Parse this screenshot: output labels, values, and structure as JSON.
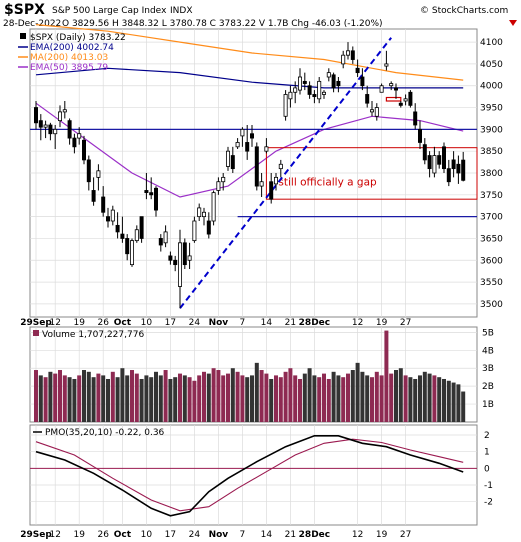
{
  "header": {
    "symbol": "$SPX",
    "name": "S&P 500 Large Cap Index",
    "exchange": "INDX",
    "date": "28-Dec-2022",
    "quote": "O 3829.56  H 3848.32  L 3780.78  C 3783.22  V 1.7B  Chg -46.03 (-1.20%)",
    "arrow": "down-triangle-icon",
    "source": "© StockCharts.com"
  },
  "colors": {
    "up_fill": "#ffffff",
    "down_fill": "#000000",
    "ema200": "#00008b",
    "ma200": "#ff8c1a",
    "ema50": "#9b30c8",
    "trendline": "#0000cc",
    "hlines": "#1a1aa6",
    "gap_box": "#cc0000",
    "vol_up": "#8e2a52",
    "vol_down": "#333333",
    "pmo": "#000000",
    "pmo_signal": "#9b1a50",
    "zero_line": "#9b1a50",
    "chg_negative": "#cc0000"
  },
  "chart_data": [
    {
      "type": "candlestick",
      "panel": "price",
      "legend": [
        {
          "label": "$SPX (Daily) 3783.22",
          "color": "#000000"
        },
        {
          "label": "EMA(200) 4002.74",
          "color": "#00008b"
        },
        {
          "label": "MA(200) 4013.03",
          "color": "#ff8c1a"
        },
        {
          "label": "EMA(50) 3895.79",
          "color": "#9b30c8"
        }
      ],
      "y_ticks": [
        3500,
        3550,
        3600,
        3650,
        3700,
        3750,
        3800,
        3850,
        3900,
        3950,
        4000,
        4050,
        4100
      ],
      "ylim": [
        3470,
        4130
      ],
      "x_ticks": [
        "29Sep",
        "12",
        "19",
        "26",
        "Oct",
        "10",
        "17",
        "24",
        "Nov",
        "7",
        "14",
        "21",
        "28Dec",
        "12",
        "19",
        "27"
      ],
      "x_tick_index": [
        0,
        4,
        9,
        14,
        18,
        23,
        28,
        33,
        38,
        43,
        48,
        53,
        58,
        67,
        72,
        77
      ],
      "candles": [
        [
          3950,
          3965,
          3900,
          3915
        ],
        [
          3920,
          3935,
          3875,
          3905
        ],
        [
          3905,
          3920,
          3880,
          3910
        ],
        [
          3910,
          3915,
          3875,
          3890
        ],
        [
          3890,
          3910,
          3855,
          3900
        ],
        [
          3920,
          3955,
          3905,
          3940
        ],
        [
          3940,
          3965,
          3925,
          3945
        ],
        [
          3920,
          3925,
          3865,
          3880
        ],
        [
          3880,
          3890,
          3845,
          3860
        ],
        [
          3880,
          3905,
          3865,
          3890
        ],
        [
          3875,
          3885,
          3820,
          3830
        ],
        [
          3830,
          3840,
          3760,
          3780
        ],
        [
          3760,
          3790,
          3725,
          3735
        ],
        [
          3790,
          3820,
          3760,
          3805
        ],
        [
          3745,
          3770,
          3700,
          3710
        ],
        [
          3700,
          3720,
          3675,
          3690
        ],
        [
          3690,
          3725,
          3680,
          3715
        ],
        [
          3680,
          3710,
          3650,
          3665
        ],
        [
          3660,
          3700,
          3640,
          3650
        ],
        [
          3650,
          3660,
          3600,
          3615
        ],
        [
          3590,
          3650,
          3585,
          3645
        ],
        [
          3645,
          3680,
          3640,
          3670
        ],
        [
          3700,
          3700,
          3640,
          3650
        ],
        [
          3760,
          3800,
          3740,
          3755
        ],
        [
          3755,
          3790,
          3740,
          3750
        ],
        [
          3765,
          3770,
          3700,
          3715
        ],
        [
          3650,
          3660,
          3620,
          3635
        ],
        [
          3640,
          3680,
          3630,
          3665
        ],
        [
          3610,
          3620,
          3590,
          3600
        ],
        [
          3600,
          3610,
          3575,
          3590
        ],
        [
          3540,
          3670,
          3490,
          3640
        ],
        [
          3640,
          3650,
          3580,
          3590
        ],
        [
          3600,
          3640,
          3580,
          3610
        ],
        [
          3645,
          3700,
          3640,
          3690
        ],
        [
          3700,
          3730,
          3690,
          3720
        ],
        [
          3700,
          3720,
          3680,
          3710
        ],
        [
          3690,
          3710,
          3650,
          3660
        ],
        [
          3690,
          3760,
          3680,
          3755
        ],
        [
          3760,
          3790,
          3750,
          3780
        ],
        [
          3780,
          3800,
          3760,
          3790
        ],
        [
          3815,
          3860,
          3805,
          3850
        ],
        [
          3840,
          3860,
          3800,
          3810
        ],
        [
          3860,
          3880,
          3855,
          3870
        ],
        [
          3885,
          3905,
          3860,
          3900
        ],
        [
          3870,
          3910,
          3830,
          3850
        ],
        [
          3890,
          3910,
          3860,
          3880
        ],
        [
          3860,
          3870,
          3760,
          3770
        ],
        [
          3770,
          3800,
          3745,
          3780
        ],
        [
          3850,
          3880,
          3845,
          3860
        ],
        [
          3780,
          3800,
          3730,
          3740
        ],
        [
          3775,
          3800,
          3760,
          3790
        ],
        [
          3810,
          3830,
          3790,
          3820
        ],
        [
          3930,
          3990,
          3920,
          3980
        ],
        [
          3970,
          4000,
          3950,
          3985
        ],
        [
          3985,
          4010,
          3960,
          3995
        ],
        [
          3990,
          4040,
          3980,
          4020
        ],
        [
          4010,
          4030,
          3990,
          4005
        ],
        [
          4000,
          4010,
          3970,
          3980
        ],
        [
          3980,
          3990,
          3960,
          3975
        ],
        [
          3970,
          4020,
          3960,
          4010
        ],
        [
          3980,
          3990,
          3970,
          3985
        ],
        [
          4020,
          4040,
          4010,
          4030
        ],
        [
          4025,
          4030,
          3985,
          3995
        ],
        [
          4010,
          4020,
          3985,
          4000
        ],
        [
          4050,
          4080,
          4040,
          4070
        ],
        [
          4070,
          4100,
          4060,
          4080
        ],
        [
          4080,
          4090,
          4050,
          4060
        ],
        [
          4040,
          4060,
          4020,
          4030
        ],
        [
          4020,
          4040,
          3990,
          4000
        ],
        [
          3980,
          4000,
          3950,
          3960
        ],
        [
          3940,
          3965,
          3930,
          3945
        ],
        [
          3930,
          3960,
          3920,
          3950
        ],
        [
          3985,
          4005,
          3985,
          4000
        ],
        [
          4045,
          4080,
          4035,
          4050
        ],
        [
          4000,
          4010,
          3990,
          4005
        ],
        [
          3995,
          4005,
          3970,
          3990
        ],
        [
          3960,
          3965,
          3950,
          3955
        ],
        [
          3965,
          3980,
          3955,
          3970
        ],
        [
          3985,
          3990,
          3950,
          3955
        ],
        [
          3940,
          3960,
          3900,
          3910
        ],
        [
          3900,
          3920,
          3855,
          3870
        ],
        [
          3865,
          3880,
          3820,
          3830
        ],
        [
          3840,
          3850,
          3790,
          3810
        ],
        [
          3800,
          3860,
          3790,
          3840
        ],
        [
          3840,
          3850,
          3810,
          3820
        ],
        [
          3860,
          3870,
          3800,
          3810
        ],
        [
          3810,
          3830,
          3770,
          3780
        ],
        [
          3830,
          3850,
          3790,
          3810
        ],
        [
          3820,
          3840,
          3775,
          3800
        ],
        [
          3829.56,
          3848.32,
          3780.78,
          3783.22
        ]
      ],
      "ema200": [
        [
          0,
          4025
        ],
        [
          15,
          4040
        ],
        [
          30,
          4030
        ],
        [
          45,
          4008
        ],
        [
          60,
          3995
        ],
        [
          75,
          3995
        ],
        [
          89,
          3995
        ]
      ],
      "ma200": [
        [
          0,
          4140
        ],
        [
          15,
          4125
        ],
        [
          30,
          4100
        ],
        [
          45,
          4075
        ],
        [
          60,
          4060
        ],
        [
          75,
          4030
        ],
        [
          89,
          4013
        ]
      ],
      "ema50": [
        [
          0,
          3960
        ],
        [
          10,
          3880
        ],
        [
          20,
          3800
        ],
        [
          30,
          3745
        ],
        [
          40,
          3770
        ],
        [
          50,
          3850
        ],
        [
          60,
          3900
        ],
        [
          70,
          3930
        ],
        [
          80,
          3920
        ],
        [
          89,
          3896
        ]
      ],
      "trendline": [
        [
          30,
          3490
        ],
        [
          74,
          4110
        ]
      ],
      "horizontal_lines": [
        3900,
        3700
      ],
      "support_segment": {
        "from": 42,
        "to": 89,
        "value": 3700
      },
      "gap_box": {
        "from": 48,
        "to": 89,
        "top": 3858,
        "bottom": 3740
      },
      "resistance_marker": {
        "from": 73,
        "to": 76,
        "top": 3973,
        "bottom": 3965
      },
      "annotation": "still officially a gap"
    },
    {
      "type": "bar",
      "panel": "volume",
      "legend": "Volume 1,707,227,776",
      "y_ticks": [
        "1B",
        "2B",
        "3B",
        "4B",
        "5B"
      ],
      "ylim": [
        0,
        5.3
      ],
      "values": [
        2.9,
        2.6,
        2.5,
        2.8,
        2.7,
        2.9,
        2.6,
        2.5,
        2.4,
        2.6,
        2.9,
        2.8,
        2.5,
        2.7,
        2.6,
        2.4,
        2.8,
        2.5,
        3.0,
        2.6,
        2.9,
        2.7,
        2.4,
        2.6,
        2.5,
        2.8,
        2.6,
        2.9,
        2.4,
        2.5,
        2.7,
        2.6,
        2.5,
        2.3,
        2.6,
        2.8,
        2.7,
        3.0,
        2.9,
        2.6,
        2.7,
        3.0,
        2.8,
        2.6,
        2.5,
        2.6,
        3.3,
        2.9,
        2.7,
        2.4,
        2.6,
        2.5,
        2.8,
        3.0,
        2.6,
        2.4,
        2.7,
        3.0,
        2.6,
        2.5,
        2.7,
        2.4,
        2.8,
        2.6,
        2.5,
        2.7,
        2.9,
        3.3,
        2.8,
        2.6,
        2.5,
        2.8,
        2.6,
        5.1,
        2.7,
        2.9,
        3.0,
        2.6,
        2.5,
        2.4,
        2.6,
        2.8,
        2.7,
        2.6,
        2.5,
        2.4,
        2.3,
        2.2,
        2.1,
        1.7
      ]
    },
    {
      "type": "line",
      "panel": "pmo",
      "legend": "PMO(35,20,10) -0.22, 0.36",
      "y_ticks": [
        -2,
        -1,
        0,
        1,
        2
      ],
      "ylim": [
        -3.4,
        2.6
      ],
      "pmo": [
        [
          0,
          1.0
        ],
        [
          6,
          0.5
        ],
        [
          12,
          -0.3
        ],
        [
          18,
          -1.3
        ],
        [
          24,
          -2.4
        ],
        [
          28,
          -2.85
        ],
        [
          32,
          -2.6
        ],
        [
          36,
          -1.4
        ],
        [
          40,
          -0.6
        ],
        [
          46,
          0.4
        ],
        [
          52,
          1.3
        ],
        [
          58,
          1.95
        ],
        [
          63,
          1.95
        ],
        [
          68,
          1.5
        ],
        [
          73,
          1.3
        ],
        [
          78,
          0.8
        ],
        [
          84,
          0.3
        ],
        [
          89,
          -0.22
        ]
      ],
      "signal": [
        [
          0,
          1.6
        ],
        [
          8,
          0.8
        ],
        [
          16,
          -0.6
        ],
        [
          24,
          -1.9
        ],
        [
          30,
          -2.55
        ],
        [
          36,
          -2.3
        ],
        [
          42,
          -1.2
        ],
        [
          48,
          -0.2
        ],
        [
          54,
          0.8
        ],
        [
          60,
          1.5
        ],
        [
          66,
          1.75
        ],
        [
          72,
          1.55
        ],
        [
          78,
          1.1
        ],
        [
          84,
          0.7
        ],
        [
          89,
          0.36
        ]
      ]
    }
  ]
}
